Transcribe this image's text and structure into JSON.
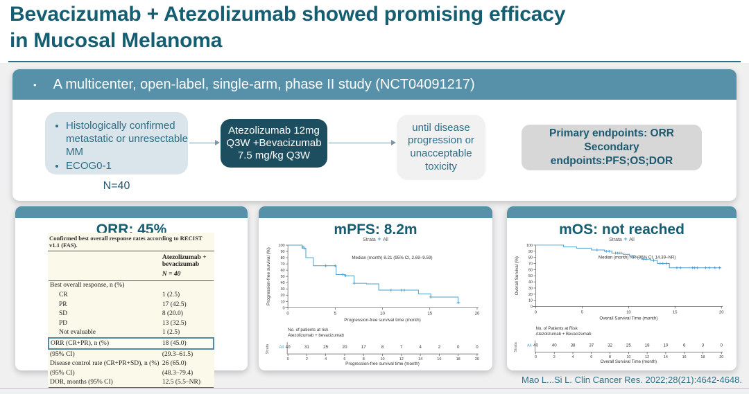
{
  "title": {
    "line1": "Bevacizumab + Atezolizumab showed promising efficacy",
    "line2": "in Mucosal Melanoma"
  },
  "study_banner": {
    "bullet": "•",
    "text": "A multicenter, open-label, single-arm, phase II study (NCT04091217)"
  },
  "flow": {
    "population_box": {
      "bullets": [
        "Histologically confirmed  metastatic or unresectable MM",
        "ECOG0-1"
      ],
      "n_label": "N=40"
    },
    "treatment_box": {
      "text": "Atezolizumab 12mg Q3W +Bevacizumab 7.5 mg/kg Q3W"
    },
    "duration_box": {
      "text": "until disease progression or unacceptable toxicity"
    },
    "endpoints_box": {
      "lines": [
        "Primary endpoints: ORR",
        "Secondary",
        "endpoints:PFS;OS;DOR"
      ]
    }
  },
  "orr_panel": {
    "title": "ORR: 45%",
    "table": {
      "caption": "Confirmed best overall response rates according to RECIST v1.1 (FAS).",
      "col_header": "Atezolizumab + bevacizumab",
      "col_subheader": "N = 40",
      "rows": [
        {
          "label": "Best overall response, n (%)",
          "value": "",
          "indent": false,
          "highlight": false
        },
        {
          "label": "CR",
          "value": "1 (2.5)",
          "indent": true,
          "highlight": false
        },
        {
          "label": "PR",
          "value": "17 (42.5)",
          "indent": true,
          "highlight": false
        },
        {
          "label": "SD",
          "value": "8 (20.0)",
          "indent": true,
          "highlight": false
        },
        {
          "label": "PD",
          "value": "13 (32.5)",
          "indent": true,
          "highlight": false
        },
        {
          "label": "Not evaluable",
          "value": "1 (2.5)",
          "indent": true,
          "highlight": false
        },
        {
          "label": "ORR (CR+PR), n (%)",
          "value": "18 (45.0)",
          "indent": false,
          "highlight": true
        },
        {
          "label": "(95% CI)",
          "value": "(29.3–61.5)",
          "indent": false,
          "highlight": false
        },
        {
          "label": "Disease control rate (CR+PR+SD), n (%)",
          "value": "26 (65.0)",
          "indent": false,
          "highlight": false
        },
        {
          "label": "(95% CI)",
          "value": "(48.3–79.4)",
          "indent": false,
          "highlight": false
        },
        {
          "label": "DOR, months (95% CI)",
          "value": "12.5 (5.5–NR)",
          "indent": false,
          "highlight": false
        }
      ]
    }
  },
  "chart_data": [
    {
      "id": "pfs",
      "type": "line",
      "panel_title": "mPFS: 8.2m",
      "color": "#4f9fca",
      "legend": {
        "prefix": "Strata",
        "symbol": "+",
        "entries": [
          {
            "label": "All",
            "color": "#4f9fca"
          }
        ]
      },
      "annotation": "Median (month) 8.21 (95% CI, 2.69–9.59)",
      "xlabel": "Progression-free survival time (month)",
      "ylabel": "Progression-free survival (%)",
      "xlim": [
        0,
        20
      ],
      "ylim": [
        0,
        100
      ],
      "xticks": [
        0,
        5,
        10,
        15,
        20
      ],
      "yticks": [
        0,
        10,
        20,
        30,
        40,
        50,
        60,
        70,
        80,
        90,
        100
      ],
      "steps": [
        [
          0,
          100
        ],
        [
          1.5,
          100
        ],
        [
          1.5,
          95
        ],
        [
          1.9,
          95
        ],
        [
          1.9,
          80
        ],
        [
          2.7,
          80
        ],
        [
          2.7,
          67
        ],
        [
          5.1,
          67
        ],
        [
          5.1,
          53
        ],
        [
          6.0,
          53
        ],
        [
          6.0,
          51
        ],
        [
          7.0,
          51
        ],
        [
          7.0,
          39
        ],
        [
          8.3,
          39
        ],
        [
          8.3,
          38
        ],
        [
          9.6,
          38
        ],
        [
          9.6,
          28
        ],
        [
          13.8,
          28
        ],
        [
          13.8,
          22
        ],
        [
          15.1,
          22
        ],
        [
          15.1,
          17
        ],
        [
          18.0,
          17
        ],
        [
          18.0,
          8
        ],
        [
          18.2,
          8
        ]
      ],
      "censors": [
        [
          1.6,
          97
        ],
        [
          1.75,
          95
        ],
        [
          4.0,
          67
        ],
        [
          5.0,
          67
        ],
        [
          5.8,
          53
        ],
        [
          6.1,
          51
        ],
        [
          7.0,
          39
        ],
        [
          10.9,
          28
        ],
        [
          12.0,
          28
        ],
        [
          12.3,
          28
        ],
        [
          15.1,
          17
        ],
        [
          18.0,
          8
        ]
      ],
      "risk_table": {
        "header1": "No. of patients at risk",
        "header2": "Atezolizumab + bevacizumab",
        "strata_label": "Strata",
        "row_label": "All",
        "times": [
          0,
          2,
          4,
          6,
          8,
          10,
          12,
          14,
          16,
          18,
          20
        ],
        "counts": [
          40,
          31,
          25,
          20,
          17,
          8,
          7,
          4,
          2,
          0,
          0
        ],
        "xlabel": "Progression-free survival time (month)"
      }
    },
    {
      "id": "os",
      "type": "line",
      "panel_title": "mOS: not reached",
      "color": "#4f9fca",
      "legend": {
        "prefix": "Strata",
        "symbol": "+",
        "entries": [
          {
            "label": "All",
            "color": "#4f9fca"
          }
        ]
      },
      "annotation": "Median (month) NR (95% CI, 14.39–NR)",
      "xlabel": "Overall Survival Time (month)",
      "ylabel": "Overall Survival (%)",
      "xlim": [
        0,
        20
      ],
      "ylim": [
        0,
        100
      ],
      "xticks": [
        0,
        5,
        10,
        15,
        20
      ],
      "yticks": [
        0,
        10,
        20,
        30,
        40,
        50,
        60,
        70,
        80,
        90,
        100
      ],
      "steps": [
        [
          0,
          100
        ],
        [
          3.0,
          100
        ],
        [
          3.0,
          97
        ],
        [
          4.4,
          97
        ],
        [
          4.4,
          95
        ],
        [
          6.0,
          95
        ],
        [
          6.0,
          92
        ],
        [
          7.4,
          92
        ],
        [
          7.4,
          90
        ],
        [
          8.2,
          90
        ],
        [
          8.2,
          87
        ],
        [
          9.4,
          87
        ],
        [
          9.4,
          85
        ],
        [
          10.1,
          85
        ],
        [
          10.1,
          82
        ],
        [
          10.8,
          82
        ],
        [
          10.8,
          80
        ],
        [
          11.4,
          80
        ],
        [
          11.4,
          77
        ],
        [
          12.4,
          77
        ],
        [
          12.4,
          75
        ],
        [
          13.1,
          75
        ],
        [
          13.1,
          70
        ],
        [
          14.4,
          70
        ],
        [
          14.4,
          63
        ],
        [
          20,
          63
        ]
      ],
      "censors": [
        [
          6.6,
          92
        ],
        [
          7.6,
          90
        ],
        [
          7.9,
          90
        ],
        [
          8.6,
          87
        ],
        [
          8.8,
          87
        ],
        [
          9.0,
          87
        ],
        [
          9.2,
          87
        ],
        [
          10.4,
          82
        ],
        [
          11.6,
          77
        ],
        [
          11.9,
          77
        ],
        [
          12.7,
          75
        ],
        [
          13.4,
          70
        ],
        [
          13.7,
          70
        ],
        [
          14.1,
          70
        ],
        [
          15.2,
          63
        ],
        [
          15.6,
          63
        ],
        [
          16.9,
          63
        ],
        [
          17.1,
          63
        ],
        [
          17.4,
          63
        ],
        [
          18.3,
          63
        ],
        [
          18.7,
          63
        ],
        [
          19.3,
          63
        ],
        [
          19.8,
          63
        ]
      ],
      "risk_table": {
        "header1": "No. of Patients at Risk",
        "header2": "Atezolizumab + Bevacizumab",
        "strata_label": "Strata",
        "row_label": "All",
        "times": [
          0,
          2,
          4,
          6,
          8,
          10,
          12,
          14,
          16,
          18,
          20
        ],
        "counts": [
          40,
          40,
          38,
          37,
          32,
          25,
          18,
          10,
          6,
          3,
          0
        ],
        "xlabel": "Overall Survival Time (month)"
      }
    }
  ],
  "citation": "Mao L...Si L. Clin Cancer Res. 2022;28(21):4642-4648.",
  "colors": {
    "title_teal": "#155e72",
    "banner_teal": "#5691a9",
    "treatment_box_dark": "#1d4e60",
    "population_box_blue": "#d9e5eb",
    "endpoints_box_gray": "#d7d7d7",
    "curve_blue": "#4f9fca",
    "table_cream": "#fbf9ea",
    "highlight_border": "#4e8aa2"
  }
}
